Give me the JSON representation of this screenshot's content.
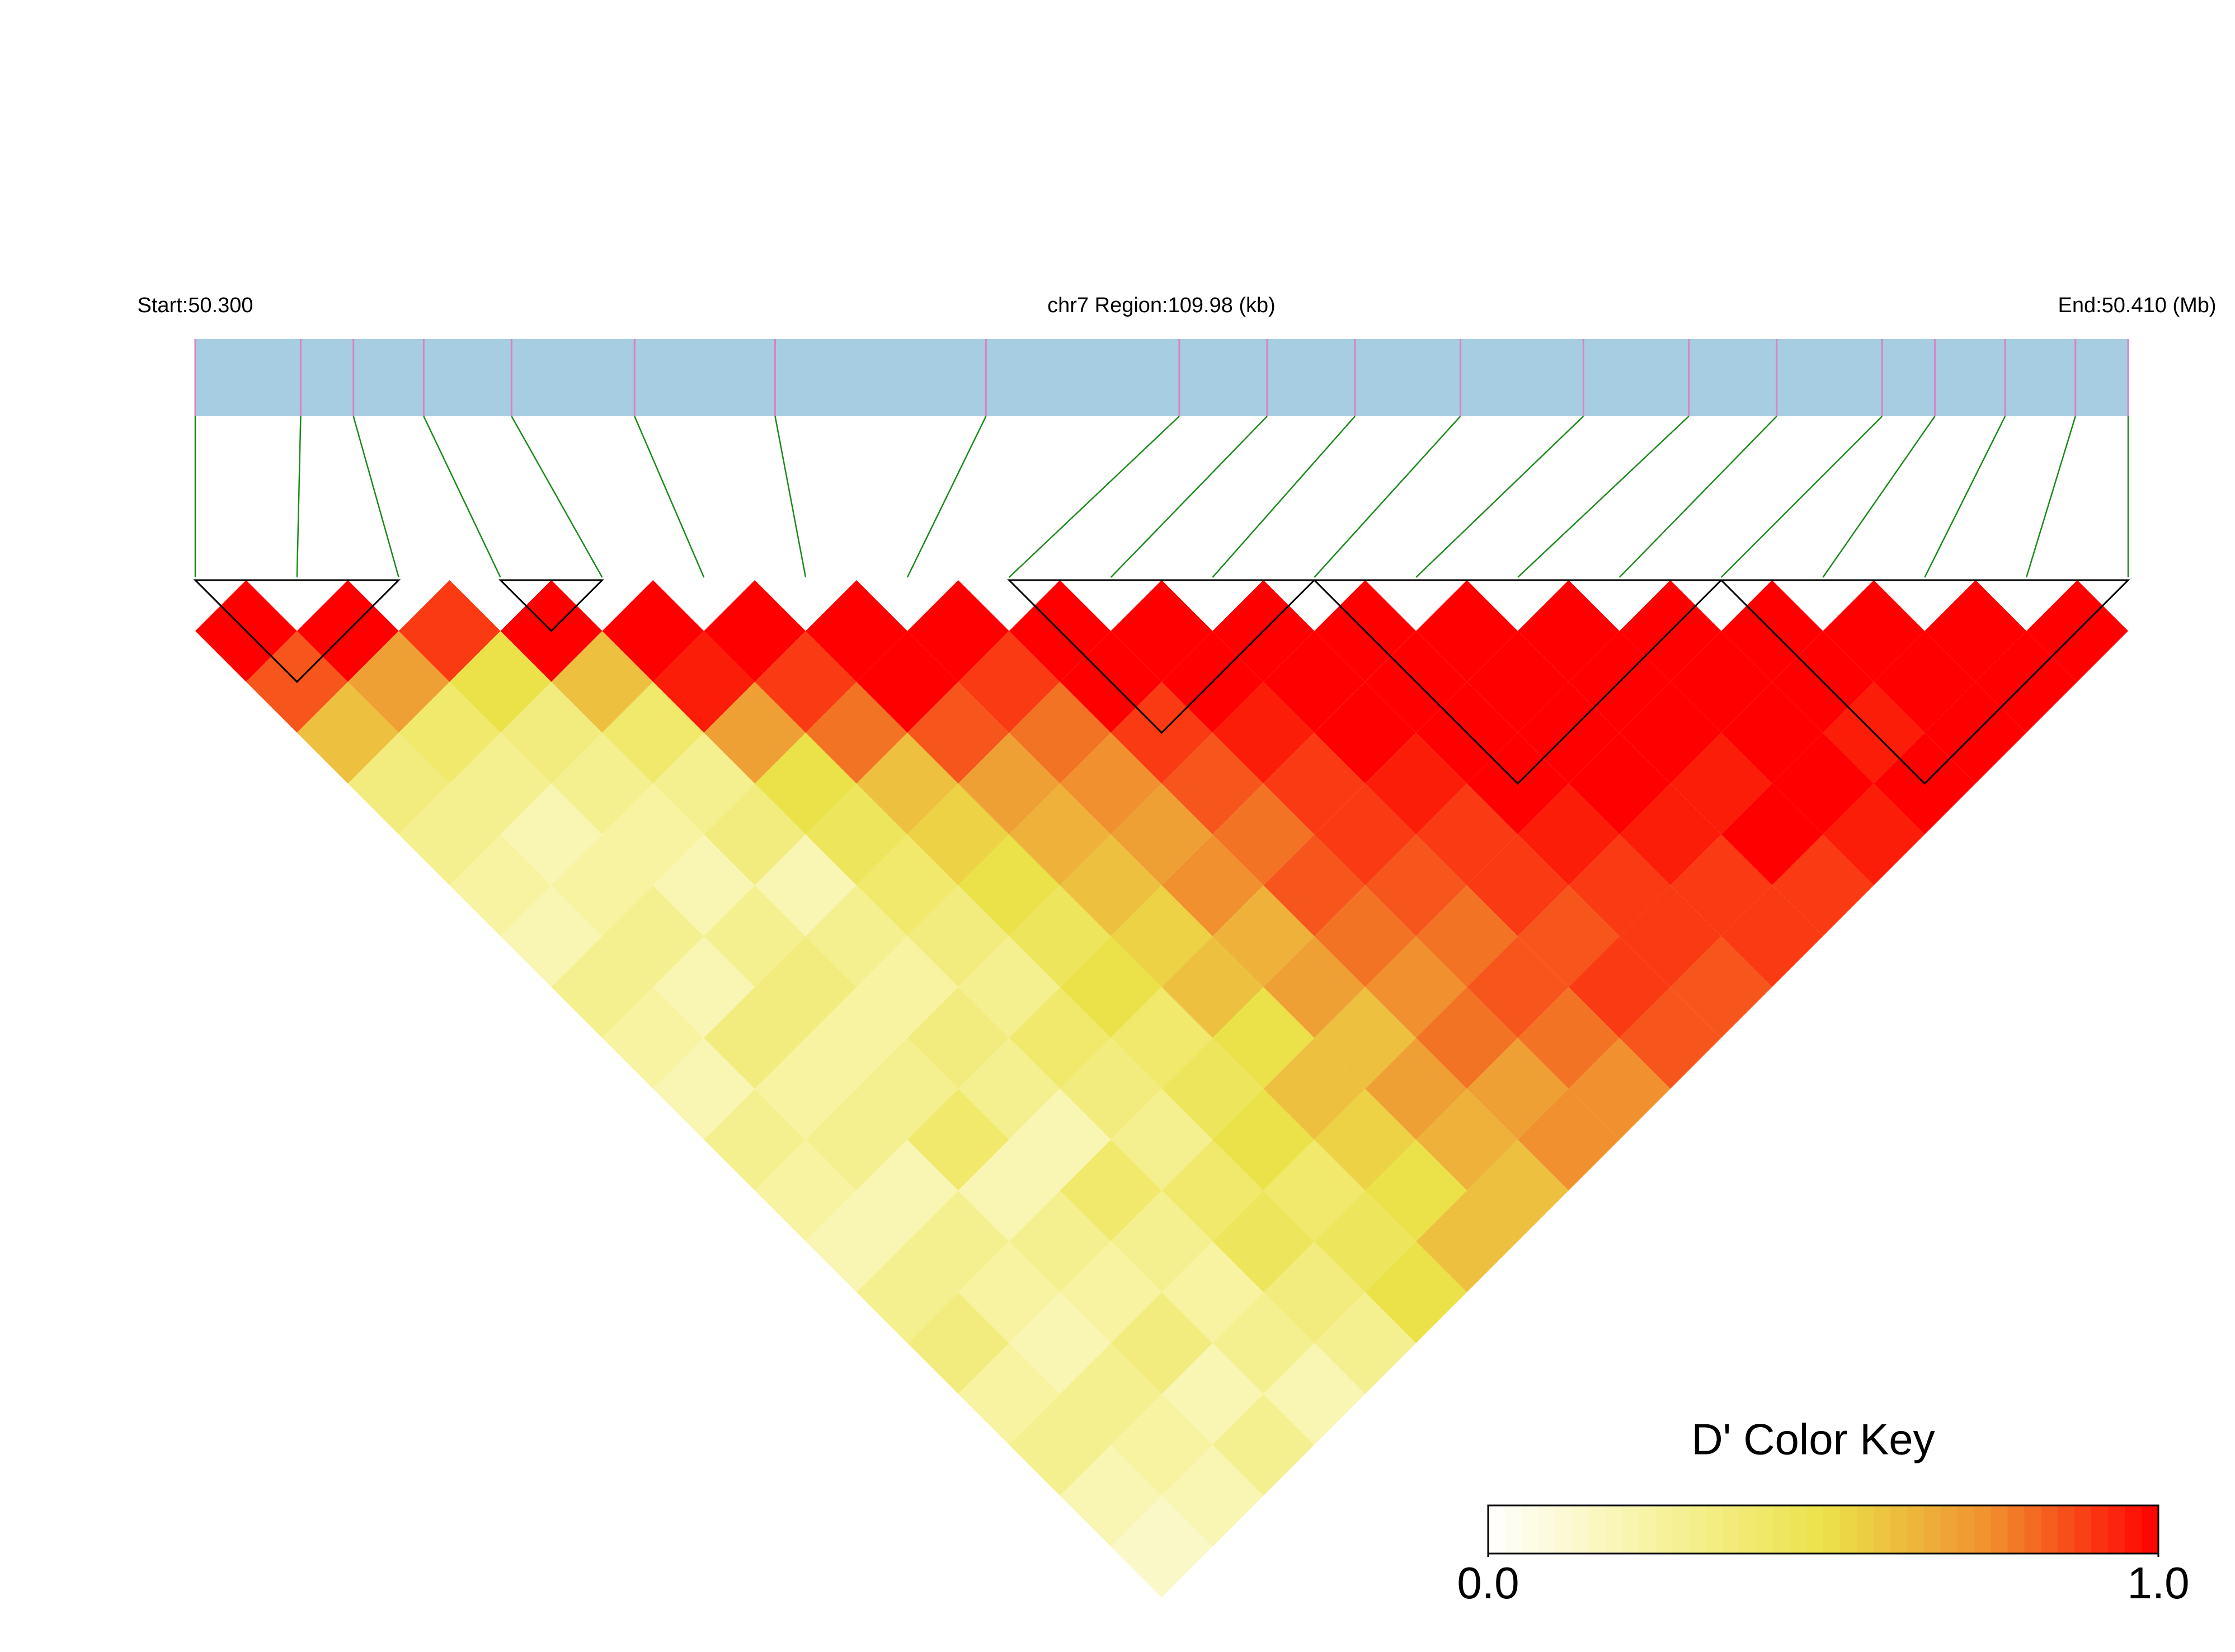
{
  "chart_data": {
    "type": "ld_heatmap",
    "start_label": "Start:50.300",
    "region_label": "chr7 Region:109.98 (kb)",
    "end_label": "End:50.410 (Mb)",
    "xlim": [
      50.3,
      50.41
    ],
    "snp_positions": [
      50.3,
      50.306,
      50.309,
      50.313,
      50.318,
      50.325,
      50.333,
      50.345,
      50.356,
      50.361,
      50.366,
      50.372,
      50.379,
      50.385,
      50.39,
      50.396,
      50.399,
      50.403,
      50.407,
      50.41
    ],
    "ld": [
      [
        1.0,
        0.85,
        0.6,
        0.35,
        0.3,
        0.25,
        0.2,
        0.3,
        0.25,
        0.2,
        0.3,
        0.25,
        0.2,
        0.3,
        0.35,
        0.25,
        0.3,
        0.2,
        0.15
      ],
      [
        1.0,
        0.7,
        0.4,
        0.3,
        0.2,
        0.25,
        0.3,
        0.2,
        0.35,
        0.25,
        0.3,
        0.2,
        0.3,
        0.25,
        0.2,
        0.3,
        0.25,
        0.2
      ],
      [
        0.9,
        0.5,
        0.35,
        0.3,
        0.25,
        0.2,
        0.3,
        0.35,
        0.25,
        0.3,
        0.4,
        0.2,
        0.3,
        0.25,
        0.35,
        0.2,
        0.3
      ],
      [
        1.0,
        0.6,
        0.4,
        0.3,
        0.35,
        0.2,
        0.3,
        0.25,
        0.35,
        0.3,
        0.2,
        0.4,
        0.3,
        0.25,
        0.3,
        0.2
      ],
      [
        1.0,
        0.95,
        0.7,
        0.5,
        0.45,
        0.4,
        0.35,
        0.3,
        0.4,
        0.35,
        0.3,
        0.4,
        0.45,
        0.35,
        0.3
      ],
      [
        1.0,
        0.9,
        0.8,
        0.6,
        0.55,
        0.5,
        0.45,
        0.5,
        0.4,
        0.45,
        0.5,
        0.4,
        0.45,
        0.5
      ],
      [
        1.0,
        1.0,
        0.85,
        0.7,
        0.65,
        0.6,
        0.55,
        0.6,
        0.5,
        0.6,
        0.55,
        0.5,
        0.6
      ],
      [
        1.0,
        0.9,
        0.8,
        0.75,
        0.7,
        0.75,
        0.65,
        0.7,
        0.6,
        0.7,
        0.65,
        0.6
      ],
      [
        1.0,
        1.0,
        0.9,
        0.85,
        0.8,
        0.85,
        0.8,
        0.75,
        0.8,
        0.7,
        0.75
      ],
      [
        1.0,
        1.0,
        0.95,
        0.9,
        0.9,
        0.85,
        0.8,
        0.85,
        0.8,
        0.75
      ],
      [
        1.0,
        1.0,
        1.0,
        0.95,
        0.9,
        0.9,
        0.85,
        0.9,
        0.85
      ],
      [
        1.0,
        1.0,
        1.0,
        1.0,
        0.95,
        0.9,
        0.9,
        0.85
      ],
      [
        1.0,
        1.0,
        1.0,
        1.0,
        0.95,
        0.9,
        0.9
      ],
      [
        1.0,
        1.0,
        1.0,
        0.95,
        1.0,
        0.9
      ],
      [
        1.0,
        1.0,
        1.0,
        1.0,
        0.95
      ],
      [
        1.0,
        1.0,
        0.95,
        1.0
      ],
      [
        1.0,
        1.0,
        1.0
      ],
      [
        1.0,
        1.0
      ],
      [
        1.0
      ]
    ],
    "blocks": [
      [
        0,
        2
      ],
      [
        3,
        4
      ],
      [
        8,
        11
      ],
      [
        11,
        15
      ],
      [
        15,
        19
      ]
    ],
    "colors": [
      "#ffffff",
      "#f7f3a0",
      "#ebe24a",
      "#f0902e",
      "#ff0000"
    ],
    "bar_color": "#a6cde1",
    "stripe_color": "#d982c8",
    "link_color": "#1a8a1a",
    "key_title": "D' Color Key",
    "key_ticks": [
      {
        "value": 0,
        "label": "0.0"
      },
      {
        "value": 1,
        "label": "1.0"
      }
    ]
  }
}
